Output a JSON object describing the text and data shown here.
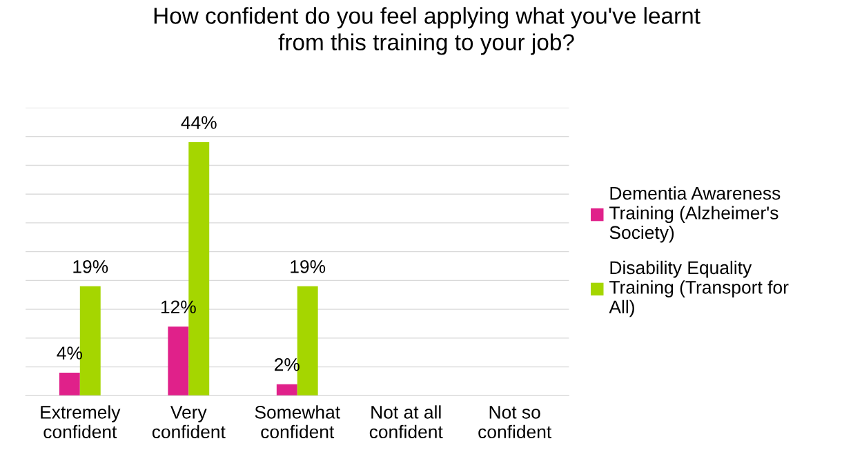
{
  "chart_data": {
    "type": "bar",
    "title": "How confident do you feel applying what you've learnt\nfrom this training to your job?",
    "categories": [
      "Extremely\nconfident",
      "Very\nconfident",
      "Somewhat\nconfident",
      "Not at all\nconfident",
      "Not so\nconfident"
    ],
    "series": [
      {
        "name": "Dementia Awareness Training (Alzheimer's Society)",
        "color": "#e0218a",
        "values": [
          4,
          12,
          2,
          null,
          null
        ],
        "value_labels": [
          "4%",
          "12%",
          "2%",
          null,
          null
        ]
      },
      {
        "name": "Disability Equality Training (Transport for All)",
        "color": "#a5d600",
        "values": [
          19,
          44,
          19,
          null,
          null
        ],
        "value_labels": [
          "19%",
          "44%",
          "19%",
          null,
          null
        ]
      }
    ],
    "ylim": [
      0,
      50
    ],
    "yticks": [
      {
        "value": 0,
        "label": null
      },
      {
        "value": 5,
        "label": null
      },
      {
        "value": 10,
        "label": null
      },
      {
        "value": 15,
        "label": null
      },
      {
        "value": 20,
        "label": null
      },
      {
        "value": 25,
        "label": null
      },
      {
        "value": 30,
        "label": null
      },
      {
        "value": 35,
        "label": null
      },
      {
        "value": 40,
        "label": null
      },
      {
        "value": 45,
        "label": null
      },
      {
        "value": 50,
        "label": null
      }
    ],
    "grid": "y",
    "legend": "right",
    "tick_labels": "x"
  }
}
